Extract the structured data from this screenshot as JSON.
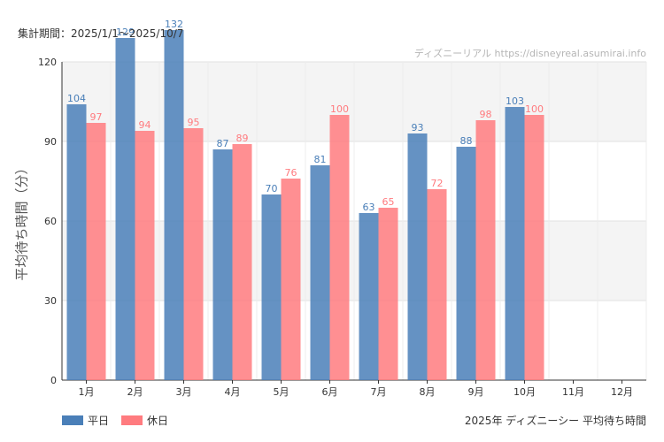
{
  "header": {
    "period": "集計期間：2025/1/1～2025/10/7"
  },
  "chart_data": {
    "type": "bar",
    "categories": [
      "1月",
      "2月",
      "3月",
      "4月",
      "5月",
      "6月",
      "7月",
      "8月",
      "9月",
      "10月",
      "11月",
      "12月"
    ],
    "series": [
      {
        "name": "平日",
        "color": "#4a7fb8",
        "values": [
          104,
          129,
          132,
          87,
          70,
          81,
          63,
          93,
          88,
          103,
          null,
          null
        ]
      },
      {
        "name": "休日",
        "color": "#ff7b7f",
        "values": [
          97,
          94,
          95,
          89,
          76,
          100,
          65,
          72,
          98,
          100,
          null,
          null
        ]
      }
    ],
    "ylabel": "平均待ち時間（分）",
    "ylim": [
      0,
      120
    ],
    "yticks": [
      0,
      30,
      60,
      90,
      120
    ],
    "grid": true,
    "watermark": "ディズニーリアル https://disneyreal.asumirai.info",
    "footer": "2025年 ディズニーシー 平均待ち時間",
    "legend_position": "bottom-left"
  }
}
